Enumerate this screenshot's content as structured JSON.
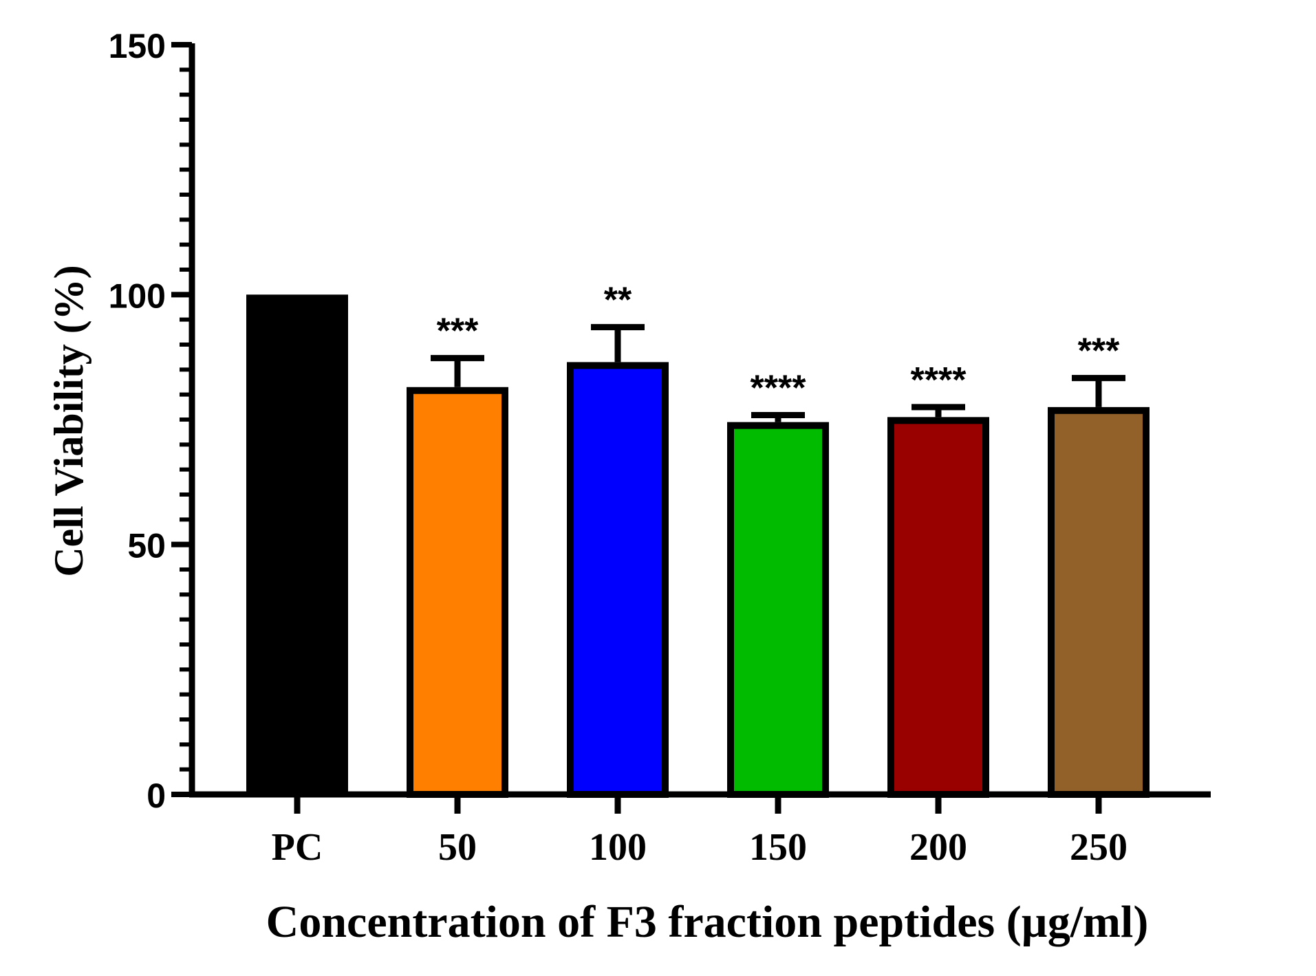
{
  "chart_data": {
    "type": "bar",
    "title": "",
    "xlabel": "Concentration of F3 fraction peptides (µg/ml)",
    "ylabel": "Cell Viability (%)",
    "ylim": [
      0,
      150
    ],
    "yticks": [
      "0",
      "50",
      "100",
      "150"
    ],
    "minor_tick_step": 5,
    "categories": [
      "PC",
      "50",
      "100",
      "150",
      "200",
      "250"
    ],
    "values": [
      100,
      81.5,
      86.5,
      74.5,
      75.5,
      77.5
    ],
    "errors": [
      0,
      5.8,
      7.0,
      1.4,
      2.0,
      5.8
    ],
    "significance": [
      "",
      "***",
      "**",
      "****",
      "****",
      "***"
    ],
    "colors": [
      "#000000",
      "#ff7f00",
      "#0000ff",
      "#00bb00",
      "#990000",
      "#92612a"
    ],
    "grid": false,
    "legend": "none"
  }
}
